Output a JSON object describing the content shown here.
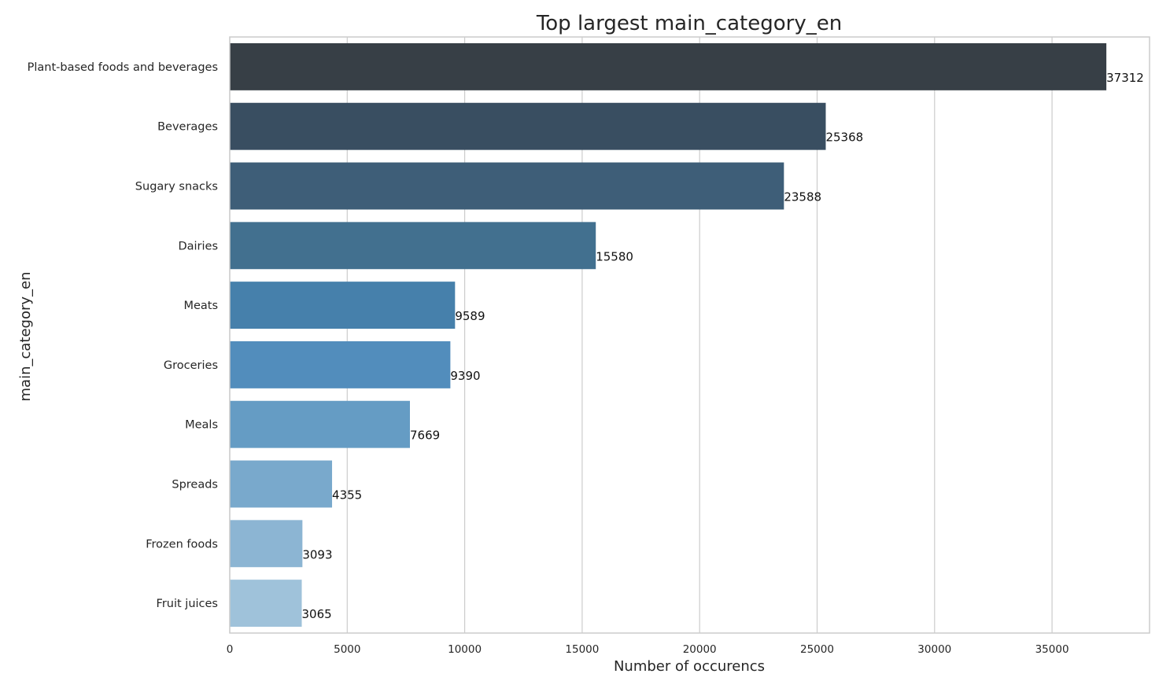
{
  "chart_data": {
    "type": "bar",
    "orientation": "horizontal",
    "title": "Top largest main_category_en",
    "xlabel": "Number of occurencs",
    "ylabel": "main_category_en",
    "categories": [
      "Plant-based foods and beverages",
      "Beverages",
      "Sugary snacks",
      "Dairies",
      "Meats",
      "Groceries",
      "Meals",
      "Spreads",
      "Frozen foods",
      "Fruit juices"
    ],
    "values": [
      37312,
      25368,
      23588,
      15580,
      9589,
      9390,
      7669,
      4355,
      3093,
      3065
    ],
    "data_labels": [
      "37312",
      "25368",
      "23588",
      "15580",
      "9589",
      "9390",
      "7669",
      "4355",
      "3093",
      "3065"
    ],
    "xlim": [
      0,
      39150
    ],
    "xticks": [
      0,
      5000,
      10000,
      15000,
      20000,
      25000,
      30000,
      35000
    ],
    "xtick_labels": [
      "0",
      "5000",
      "10000",
      "15000",
      "20000",
      "25000",
      "30000",
      "35000"
    ],
    "grid": "vertical",
    "colors": [
      "#373f46",
      "#394e61",
      "#3e5e78",
      "#42708f",
      "#4680ab",
      "#528dbc",
      "#659cc4",
      "#79a9cc",
      "#8cb5d3",
      "#9fc2da"
    ]
  }
}
